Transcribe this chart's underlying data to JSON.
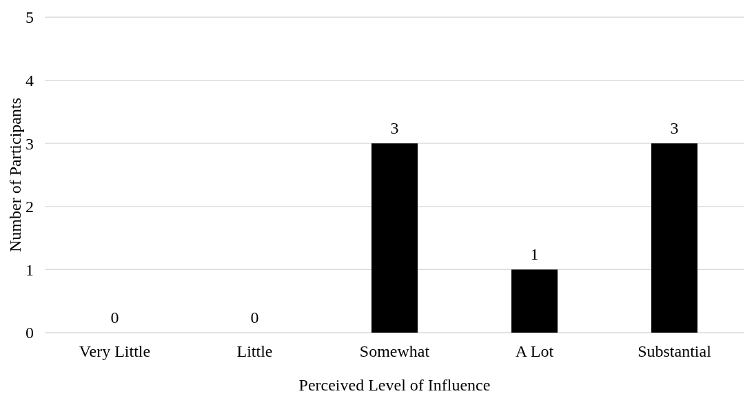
{
  "chart_data": {
    "type": "bar",
    "xlabel": "Perceived Level of Influence",
    "ylabel": "Number of Participants",
    "categories": [
      "Very Little",
      "Little",
      "Somewhat",
      "A Lot",
      "Substantial"
    ],
    "values": [
      0,
      0,
      3,
      1,
      3
    ],
    "color": "#000000",
    "ylim": [
      0,
      5
    ],
    "yticks": [
      0,
      1,
      2,
      3,
      4,
      5
    ],
    "grid": "y",
    "data_labels": true
  }
}
